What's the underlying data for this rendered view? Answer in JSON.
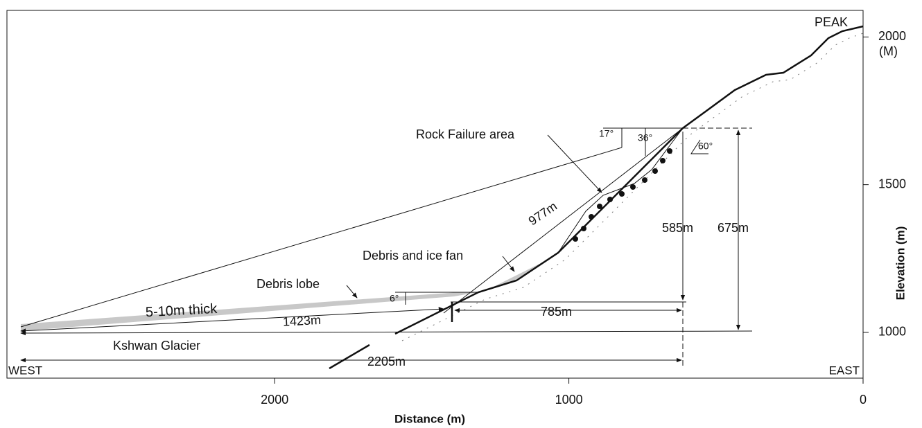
{
  "axes": {
    "x": {
      "label": "Distance (m)",
      "lim": [
        2910,
        0
      ],
      "ticks": [
        2000,
        1000,
        0
      ]
    },
    "y": {
      "label": "Elevation (m)",
      "unit": "(M)",
      "lim": [
        845,
        2090
      ],
      "ticks": [
        1000,
        1500,
        2000
      ]
    }
  },
  "labels": {
    "peak": "PEAK",
    "west": "WEST",
    "east": "EAST",
    "rock_failure": "Rock Failure area",
    "runout": "977m",
    "angle_17": "17°",
    "angle_36": "36°",
    "angle_60": "60°",
    "drop_585": "585m",
    "drop_675": "675m",
    "fan": "Debris and ice fan",
    "lobe": "Debris lobe",
    "angle_6": "6°",
    "thickness": "5-10m thick",
    "dist_1423": "1423m",
    "dist_785": "785m",
    "glacier": "Kshwan Glacier",
    "dist_2205": "2205m"
  }
}
